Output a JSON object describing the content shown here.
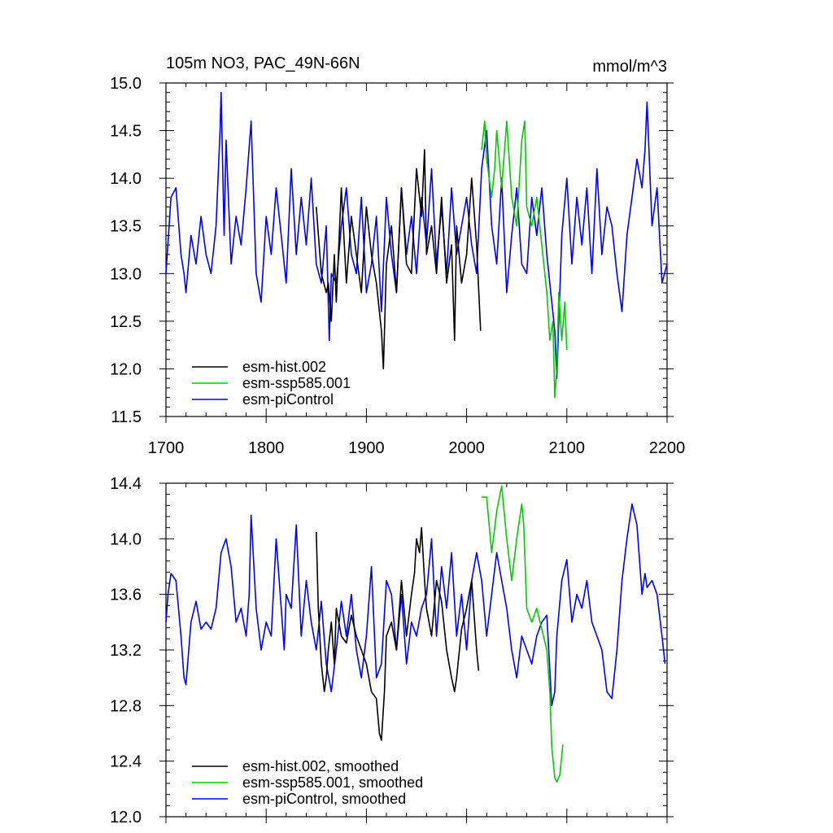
{
  "chart_data": [
    {
      "type": "line",
      "title_left": "105m NO3, PAC_49N-66N",
      "title_right": "mmol/m^3",
      "xlabel": "",
      "ylabel": "",
      "xlim": [
        1700,
        2200
      ],
      "ylim": [
        11.5,
        15.0
      ],
      "xticks": [
        1700,
        1800,
        1900,
        2000,
        2100,
        2200
      ],
      "xtick_labels": [
        "1700",
        "1800",
        "1900",
        "2000",
        "2100",
        "2200"
      ],
      "yticks": [
        11.5,
        12.0,
        12.5,
        13.0,
        13.5,
        14.0,
        14.5,
        15.0
      ],
      "ytick_labels": [
        "11.5",
        "12.0",
        "12.5",
        "13.0",
        "13.5",
        "14.0",
        "14.5",
        "15.0"
      ],
      "legend_position": "bottom-left",
      "series": [
        {
          "name": "esm-hist.002",
          "color": "#000000",
          "x": [
            1850,
            1855,
            1860,
            1862,
            1865,
            1868,
            1870,
            1875,
            1878,
            1880,
            1885,
            1890,
            1895,
            1900,
            1903,
            1905,
            1910,
            1915,
            1917,
            1920,
            1925,
            1930,
            1935,
            1940,
            1945,
            1950,
            1955,
            1958,
            1960,
            1965,
            1970,
            1975,
            1980,
            1985,
            1988,
            1990,
            1995,
            2000,
            2005,
            2010,
            2014
          ],
          "values": [
            13.7,
            13.0,
            12.8,
            12.9,
            12.5,
            13.2,
            12.7,
            13.9,
            13.3,
            12.9,
            13.6,
            13.2,
            12.8,
            13.7,
            13.4,
            13.2,
            12.9,
            12.4,
            12.0,
            13.1,
            13.5,
            12.8,
            13.9,
            13.1,
            13.0,
            14.1,
            13.6,
            14.3,
            13.2,
            13.5,
            13.0,
            13.8,
            12.9,
            13.3,
            12.3,
            13.5,
            12.9,
            13.2,
            14.0,
            13.3,
            12.4
          ],
          "smoothed_x": [
            1850,
            1852,
            1855,
            1858,
            1860,
            1862,
            1865,
            1868,
            1870,
            1875,
            1880,
            1885,
            1890,
            1895,
            1900,
            1905,
            1910,
            1913,
            1915,
            1918,
            1920,
            1925,
            1930,
            1935,
            1940,
            1945,
            1948,
            1950,
            1953,
            1955,
            1958,
            1960,
            1965,
            1970,
            1975,
            1980,
            1985,
            1988,
            1990,
            1995,
            2000,
            2005,
            2010,
            2012
          ],
          "smoothed_values": [
            14.05,
            13.5,
            13.1,
            12.9,
            13.0,
            13.2,
            13.4,
            13.1,
            13.5,
            13.3,
            13.25,
            13.45,
            13.3,
            13.2,
            13.1,
            12.9,
            12.85,
            12.6,
            12.55,
            12.9,
            13.3,
            13.4,
            13.2,
            13.7,
            13.3,
            13.6,
            13.75,
            14.0,
            13.9,
            14.08,
            13.7,
            13.5,
            13.3,
            13.7,
            13.55,
            13.2,
            13.0,
            12.9,
            13.0,
            13.35,
            13.5,
            13.7,
            13.2,
            13.05
          ]
        },
        {
          "name": "esm-ssp585.001",
          "color": "#00cc00",
          "x": [
            2015,
            2018,
            2020,
            2025,
            2028,
            2030,
            2035,
            2040,
            2045,
            2050,
            2055,
            2058,
            2060,
            2065,
            2070,
            2075,
            2080,
            2083,
            2086,
            2088,
            2090,
            2092,
            2095,
            2098,
            2100
          ],
          "values": [
            14.3,
            14.6,
            14.2,
            13.8,
            14.1,
            14.5,
            13.9,
            14.6,
            13.8,
            13.5,
            14.4,
            14.6,
            13.7,
            13.5,
            13.8,
            13.3,
            12.8,
            12.3,
            12.5,
            11.7,
            12.0,
            12.8,
            12.3,
            12.7,
            12.2
          ],
          "smoothed_x": [
            2015,
            2020,
            2025,
            2030,
            2035,
            2040,
            2045,
            2050,
            2055,
            2057,
            2060,
            2065,
            2070,
            2075,
            2080,
            2083,
            2085,
            2088,
            2090,
            2093,
            2096
          ],
          "smoothed_values": [
            14.3,
            14.3,
            13.9,
            14.2,
            14.38,
            14.0,
            13.7,
            14.0,
            14.25,
            14.1,
            13.5,
            13.4,
            13.5,
            13.35,
            13.2,
            12.9,
            12.5,
            12.28,
            12.25,
            12.3,
            12.52
          ]
        },
        {
          "name": "esm-piControl",
          "color": "#0000ff",
          "x": [
            1700,
            1705,
            1710,
            1715,
            1718,
            1720,
            1725,
            1730,
            1735,
            1740,
            1745,
            1750,
            1754,
            1755,
            1758,
            1760,
            1765,
            1770,
            1775,
            1780,
            1785,
            1790,
            1795,
            1800,
            1805,
            1810,
            1815,
            1820,
            1825,
            1830,
            1835,
            1840,
            1845,
            1850,
            1855,
            1860,
            1863,
            1865,
            1870,
            1875,
            1880,
            1885,
            1890,
            1895,
            1900,
            1905,
            1910,
            1915,
            1920,
            1925,
            1930,
            1935,
            1940,
            1945,
            1950,
            1955,
            1960,
            1965,
            1970,
            1975,
            1980,
            1985,
            1990,
            1995,
            2000,
            2005,
            2010,
            2015,
            2020,
            2025,
            2030,
            2035,
            2040,
            2045,
            2050,
            2055,
            2060,
            2065,
            2070,
            2075,
            2080,
            2085,
            2088,
            2090,
            2095,
            2100,
            2105,
            2110,
            2115,
            2120,
            2125,
            2130,
            2135,
            2140,
            2145,
            2150,
            2155,
            2160,
            2165,
            2170,
            2175,
            2178,
            2180,
            2185,
            2190,
            2195,
            2200
          ],
          "values": [
            13.0,
            13.8,
            13.9,
            13.2,
            13.0,
            12.8,
            13.4,
            13.1,
            13.6,
            13.2,
            13.0,
            13.5,
            14.5,
            14.9,
            13.4,
            14.4,
            13.1,
            13.6,
            13.3,
            13.9,
            14.6,
            13.0,
            12.7,
            13.6,
            13.2,
            13.9,
            13.4,
            12.9,
            14.1,
            13.2,
            13.8,
            13.3,
            14.0,
            13.1,
            12.9,
            13.5,
            12.3,
            13.0,
            12.9,
            13.5,
            13.9,
            13.2,
            13.0,
            13.8,
            12.8,
            13.1,
            13.6,
            12.6,
            13.8,
            13.2,
            12.8,
            13.9,
            13.2,
            13.6,
            13.0,
            13.8,
            13.3,
            14.1,
            13.1,
            13.7,
            13.0,
            13.9,
            13.2,
            13.5,
            13.8,
            13.3,
            13.0,
            14.1,
            14.5,
            13.5,
            13.1,
            14.0,
            12.8,
            13.4,
            13.9,
            13.1,
            13.0,
            13.8,
            13.4,
            13.9,
            13.2,
            12.7,
            12.4,
            11.9,
            13.4,
            14.0,
            13.1,
            13.8,
            13.3,
            13.9,
            13.0,
            14.1,
            13.2,
            13.7,
            13.5,
            13.0,
            12.6,
            13.4,
            13.8,
            14.2,
            13.9,
            14.3,
            14.8,
            13.5,
            13.9,
            12.9,
            13.1
          ],
          "smoothed_x": [
            1700,
            1702,
            1705,
            1710,
            1715,
            1718,
            1720,
            1725,
            1730,
            1735,
            1740,
            1745,
            1750,
            1755,
            1760,
            1765,
            1770,
            1775,
            1780,
            1783,
            1785,
            1790,
            1795,
            1800,
            1805,
            1810,
            1815,
            1818,
            1820,
            1825,
            1830,
            1835,
            1840,
            1845,
            1850,
            1855,
            1860,
            1865,
            1870,
            1875,
            1880,
            1885,
            1890,
            1895,
            1900,
            1905,
            1910,
            1915,
            1920,
            1925,
            1930,
            1935,
            1940,
            1945,
            1950,
            1955,
            1960,
            1965,
            1970,
            1975,
            1980,
            1985,
            1990,
            1995,
            2000,
            2005,
            2010,
            2015,
            2020,
            2025,
            2030,
            2035,
            2040,
            2045,
            2050,
            2055,
            2060,
            2065,
            2070,
            2075,
            2080,
            2085,
            2088,
            2090,
            2095,
            2100,
            2105,
            2110,
            2115,
            2120,
            2125,
            2130,
            2135,
            2140,
            2145,
            2150,
            2155,
            2160,
            2165,
            2170,
            2175,
            2178,
            2180,
            2185,
            2190,
            2195,
            2198
          ],
          "smoothed_values": [
            13.4,
            13.6,
            13.75,
            13.7,
            13.3,
            13.0,
            12.95,
            13.4,
            13.55,
            13.35,
            13.4,
            13.35,
            13.5,
            13.9,
            14.0,
            13.8,
            13.4,
            13.5,
            13.3,
            13.6,
            14.17,
            13.5,
            13.2,
            13.4,
            13.3,
            14.0,
            13.5,
            13.2,
            13.6,
            13.5,
            14.1,
            13.3,
            13.7,
            13.4,
            13.2,
            13.55,
            13.1,
            12.9,
            13.2,
            13.55,
            13.3,
            13.6,
            13.2,
            13.0,
            13.3,
            13.8,
            13.0,
            13.1,
            13.7,
            13.6,
            13.2,
            13.6,
            13.1,
            13.4,
            13.3,
            13.5,
            13.6,
            14.0,
            13.3,
            13.8,
            13.5,
            13.9,
            13.3,
            13.6,
            13.2,
            13.7,
            13.9,
            13.7,
            13.3,
            13.6,
            13.9,
            13.7,
            13.5,
            13.2,
            13.0,
            13.3,
            13.2,
            13.1,
            13.3,
            13.4,
            13.45,
            12.8,
            12.9,
            13.3,
            13.7,
            13.85,
            13.4,
            13.6,
            13.5,
            13.7,
            13.4,
            13.3,
            13.2,
            12.9,
            12.85,
            13.2,
            13.7,
            14.0,
            14.25,
            14.1,
            13.6,
            13.75,
            13.65,
            13.7,
            13.6,
            13.3,
            13.1
          ]
        }
      ]
    },
    {
      "type": "line",
      "title": "",
      "xlabel": "",
      "ylabel": "",
      "xlim": [
        1700,
        2200
      ],
      "ylim": [
        12.0,
        14.4
      ],
      "yticks": [
        12.0,
        12.4,
        12.8,
        13.2,
        13.6,
        14.0,
        14.4
      ],
      "ytick_labels": [
        "12.0",
        "12.4",
        "12.8",
        "13.2",
        "13.6",
        "14.0",
        "14.4"
      ],
      "legend_position": "bottom-left",
      "series_names": [
        "esm-hist.002, smoothed",
        "esm-ssp585.001, smoothed",
        "esm-piControl, smoothed"
      ],
      "series_colors": [
        "#000000",
        "#00cc00",
        "#0000ff"
      ]
    }
  ]
}
